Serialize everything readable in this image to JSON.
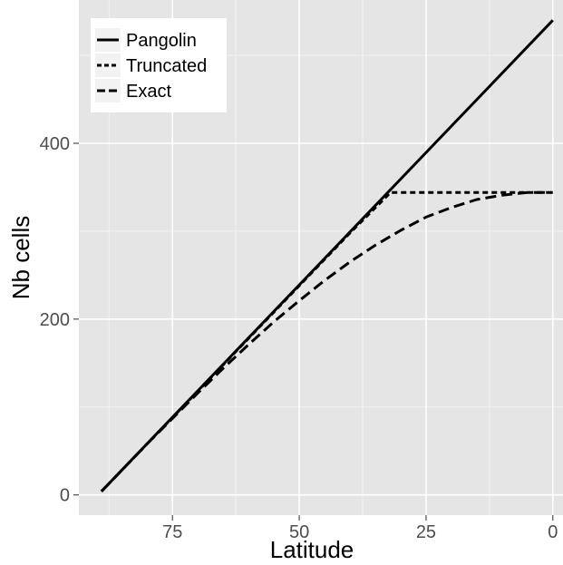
{
  "colors": {
    "panel": "#e5e5e5",
    "grid_major": "#ffffff",
    "grid_minor": "#f2f2f2",
    "line": "#000000",
    "legend_key_bg": "#f2f2f2"
  },
  "chart_data": {
    "type": "line",
    "xlabel": "Latitude",
    "ylabel": "Nb cells",
    "x_reversed": true,
    "xlim": [
      90,
      0
    ],
    "ylim": [
      0,
      540
    ],
    "x_ticks": [
      75,
      50,
      25,
      0
    ],
    "y_ticks": [
      0,
      200,
      400
    ],
    "legend_position": "top-left",
    "series": [
      {
        "name": "Pangolin",
        "linestyle": "solid",
        "x": [
          89,
          0
        ],
        "y": [
          4,
          540
        ]
      },
      {
        "name": "Truncated",
        "linestyle": "dotted",
        "x": [
          89,
          80,
          70,
          60,
          50,
          40,
          32,
          25,
          15,
          5,
          0
        ],
        "y": [
          4,
          58,
          118,
          178,
          238,
          298,
          344,
          344,
          344,
          344,
          344
        ]
      },
      {
        "name": "Exact",
        "linestyle": "dashed",
        "x": [
          89,
          85,
          80,
          75,
          70,
          65,
          60,
          55,
          50,
          45,
          40,
          35,
          30,
          25,
          20,
          15,
          10,
          5,
          0
        ],
        "y": [
          4,
          28,
          58,
          87,
          116,
          144,
          171,
          197,
          221,
          244,
          265,
          284,
          301,
          316,
          327,
          336,
          341,
          344,
          344
        ]
      }
    ]
  }
}
